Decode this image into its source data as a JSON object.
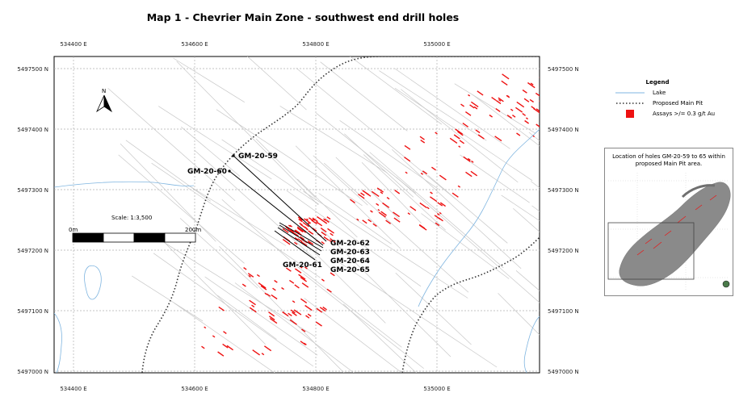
{
  "map": {
    "title": "Map 1 - Chevrier Main Zone - southwest end drill holes",
    "easting_ticks": [
      "534400 E",
      "534600 E",
      "534800 E",
      "535000 E"
    ],
    "northing_ticks": [
      "5497500 N",
      "5497400 N",
      "5497300 N",
      "5497200 N",
      "5497100 N",
      "5497000 N"
    ],
    "north_arrow_label": "N",
    "scale": {
      "label": "Scale: 1:3,500",
      "start_label": "0m",
      "end_label": "200m"
    },
    "drill_holes": [
      "GM-20-59",
      "GM-20-60",
      "GM-20-62",
      "GM-20-63",
      "GM-20-64",
      "GM-20-65",
      "GM-20-61"
    ],
    "colors": {
      "lake": "#7fb5e0",
      "pit_outline": "#333333",
      "assay": "#ee1111",
      "grid": "#b0b0b0",
      "historic_holes": "#c8c8c8"
    }
  },
  "legend": {
    "title": "Legend",
    "items": [
      {
        "symbol": "lake-line",
        "label": "Lake"
      },
      {
        "symbol": "dotted-line",
        "label": "Proposed Main Pit"
      },
      {
        "symbol": "red-square",
        "label": "Assays >/= 0.3 g/t Au"
      }
    ]
  },
  "inset": {
    "title": "Location of holes GM-20-59 to 65 within proposed Main Pit area."
  }
}
